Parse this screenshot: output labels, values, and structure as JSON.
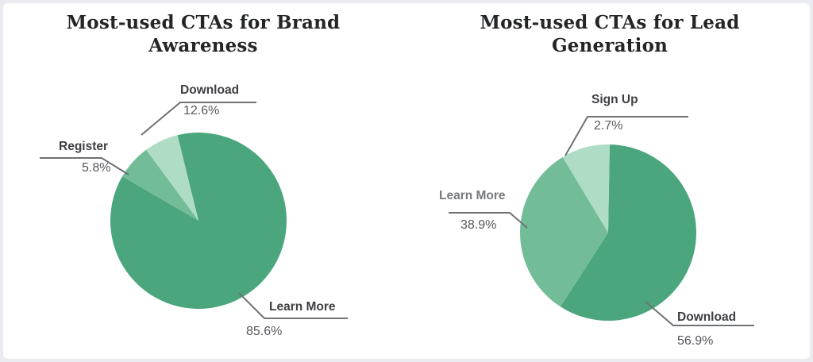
{
  "palette": {
    "green_dark": "#4BA67E",
    "green_medium": "#72BD97",
    "green_light": "#AEDCC4",
    "callout_line": "#6E7175",
    "label_text": "#3E3F42",
    "label_text_muted": "#77797C",
    "percent_text": "#56585C",
    "title_text": "#232527",
    "frame": "#E9EBF0",
    "card_background": "#FFFFFF"
  },
  "chart_data": [
    {
      "type": "pie",
      "title": "Most-used CTAs for Brand Awareness",
      "title_lines": [
        "Most-used CTAs for Brand",
        "Awareness"
      ],
      "legend_position": "callout-labels",
      "slices": [
        {
          "label": "Learn More",
          "value": 85.6,
          "pct_text": "85.6%",
          "color": "#4BA67E"
        },
        {
          "label": "Download",
          "value": 12.6,
          "pct_text": "12.6%",
          "color": "#AEDCC4"
        },
        {
          "label": "Register",
          "value": 5.8,
          "pct_text": "5.8%",
          "color": "#72BD97"
        }
      ]
    },
    {
      "type": "pie",
      "title": "Most-used CTAs for Lead Generation",
      "title_lines": [
        "Most-used CTAs for Lead",
        "Generation"
      ],
      "legend_position": "callout-labels",
      "slices": [
        {
          "label": "Download",
          "value": 56.9,
          "pct_text": "56.9%",
          "color": "#4BA67E"
        },
        {
          "label": "Learn More",
          "value": 38.9,
          "pct_text": "38.9%",
          "color": "#72BD97"
        },
        {
          "label": "Sign Up",
          "value": 2.7,
          "pct_text": "2.7%",
          "color": "#AEDCC4"
        }
      ]
    }
  ]
}
